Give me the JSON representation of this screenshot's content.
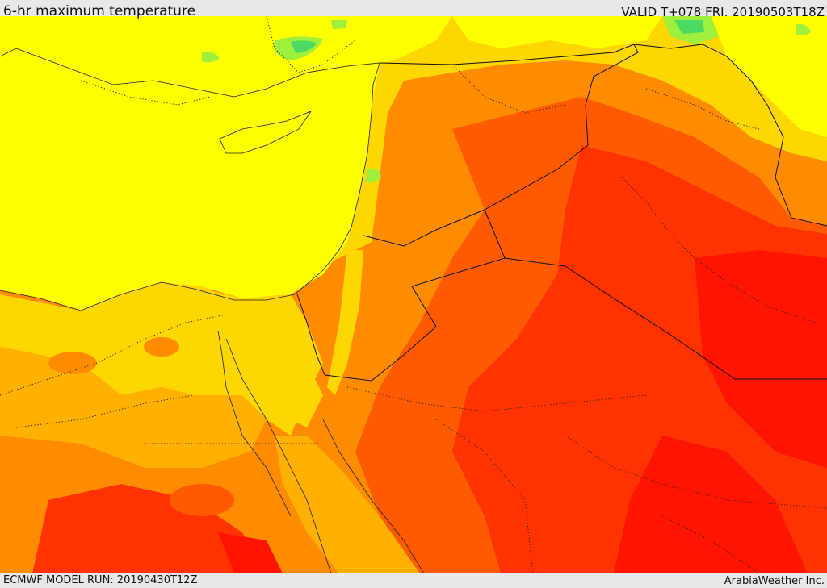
{
  "header": {
    "title": "6-hr maximum temperature",
    "valid": "VALID T+078 FRI. 20190503T18Z"
  },
  "footer": {
    "model_run": "ECMWF MODEL RUN: 20190430T12Z",
    "credit": "ArabiaWeather Inc."
  },
  "palette": {
    "green": "#4cd964",
    "light_green": "#9ef03c",
    "yellow": "#ffff00",
    "light_orange": "#ffd700",
    "orange_yellow": "#ffb000",
    "orange": "#ff8c00",
    "dark_orange": "#ff5a00",
    "red_orange": "#ff3200",
    "red": "#ff1400"
  }
}
